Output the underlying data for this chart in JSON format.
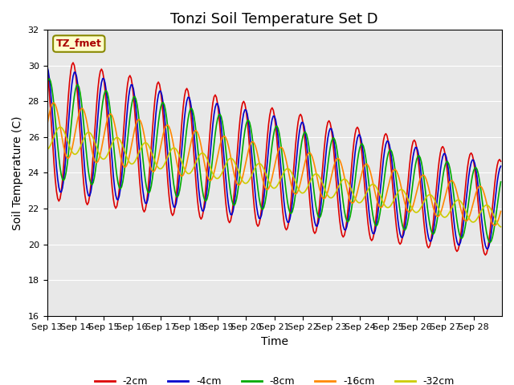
{
  "title": "Tonzi Soil Temperature Set D",
  "xlabel": "Time",
  "ylabel": "Soil Temperature (C)",
  "ylim": [
    16,
    32
  ],
  "xtick_labels": [
    "Sep 13",
    "Sep 14",
    "Sep 15",
    "Sep 16",
    "Sep 17",
    "Sep 18",
    "Sep 19",
    "Sep 20",
    "Sep 21",
    "Sep 22",
    "Sep 23",
    "Sep 24",
    "Sep 25",
    "Sep 26",
    "Sep 27",
    "Sep 28"
  ],
  "legend_label": "TZ_fmet",
  "series_labels": [
    "-2cm",
    "-4cm",
    "-8cm",
    "-16cm",
    "-32cm"
  ],
  "series_colors": [
    "#dd0000",
    "#0000cc",
    "#00aa00",
    "#ff8800",
    "#cccc00"
  ],
  "background_color": "#e8e8e8",
  "title_fontsize": 13,
  "axis_label_fontsize": 10,
  "tick_fontsize": 8,
  "legend_fontsize": 9,
  "annotation_fontsize": 9
}
